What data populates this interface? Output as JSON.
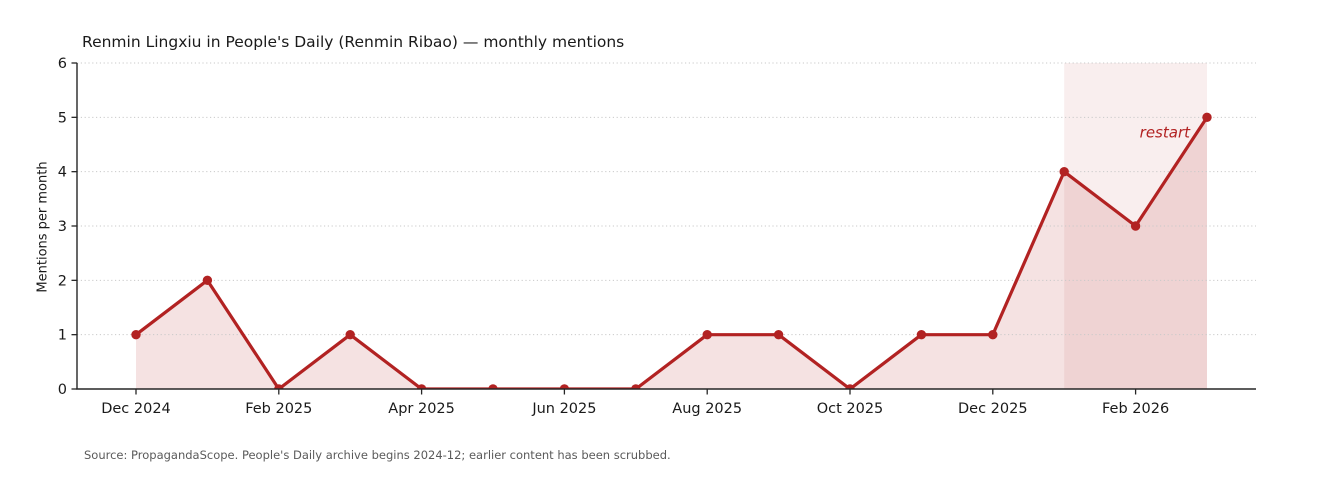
{
  "page": {
    "source_note": "Source: PropagandaScope. People's Daily archive begins 2024-12; earlier content has been scrubbed."
  },
  "chart_data": {
    "type": "line",
    "title": "Renmin Lingxiu in People's Daily (Renmin Ribao) — monthly mentions",
    "xlabel": "",
    "ylabel": "Mentions per month",
    "x": [
      "Dec 2024",
      "Jan 2025",
      "Feb 2025",
      "Mar 2025",
      "Apr 2025",
      "May 2025",
      "Jun 2025",
      "Jul 2025",
      "Aug 2025",
      "Sep 2025",
      "Oct 2025",
      "Nov 2025",
      "Dec 2025",
      "Jan 2026",
      "Feb 2026",
      "Mar 2026"
    ],
    "values": [
      1,
      2,
      0,
      1,
      0,
      0,
      0,
      0,
      1,
      1,
      0,
      1,
      1,
      4,
      3,
      5
    ],
    "ylim": [
      0,
      6
    ],
    "yticks": [
      0,
      1,
      2,
      3,
      4,
      5,
      6
    ],
    "xticks": {
      "indices": [
        0,
        2,
        4,
        6,
        8,
        10,
        12,
        14
      ],
      "labels": [
        "Dec 2024",
        "Feb 2025",
        "Apr 2025",
        "Jun 2025",
        "Aug 2025",
        "Oct 2025",
        "Dec 2025",
        "Feb 2026"
      ]
    },
    "grid": {
      "horizontal_dotted": true,
      "color": "#c9c9c9"
    },
    "legend": "none",
    "line_color": "#b22222",
    "marker": "circle",
    "area_fill": {
      "color": "#b22222",
      "opacity": 0.13
    },
    "highlight_span": {
      "from": "Jan 2026",
      "to": "Mar 2026",
      "from_index": 13,
      "to_index": 15,
      "fill_color": "#b22222",
      "fill_opacity": 0.08
    },
    "annotation": {
      "text": "restart",
      "style": "italic",
      "color": "#b22222",
      "near": "Mar 2026"
    },
    "axis_color": "#262626",
    "tick_label_color": "#1a1a1a"
  }
}
